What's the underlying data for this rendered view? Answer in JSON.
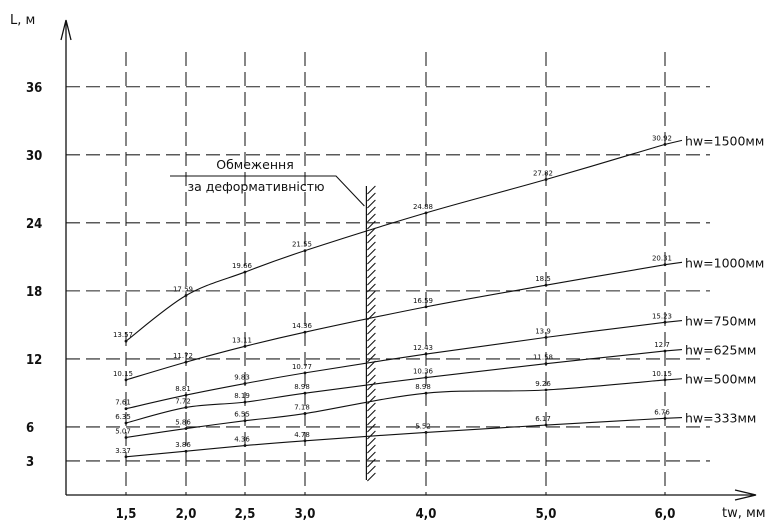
{
  "chart_data": {
    "type": "line",
    "xlabel": "tw, мм",
    "ylabel": "L, м",
    "x_ticks": [
      "1,5",
      "2,0",
      "2,5",
      "3,0",
      "4,0",
      "5,0",
      "6,0"
    ],
    "x_tick_values": [
      1.5,
      2.0,
      2.5,
      3.0,
      4.0,
      5.0,
      6.0
    ],
    "y_ticks": [
      "3",
      "6",
      "12",
      "18",
      "24",
      "30",
      "36"
    ],
    "y_tick_values": [
      3,
      6,
      12,
      18,
      24,
      30,
      36
    ],
    "grid": true,
    "limit_line": {
      "x": 3.5,
      "label_lines": [
        "Обмеження",
        "за деформативністю"
      ]
    },
    "series": [
      {
        "name": "hw=1500мм",
        "x": [
          1.5,
          2.0,
          2.5,
          3.0,
          4.0,
          5.0,
          6.0
        ],
        "values": [
          13.57,
          17.59,
          19.66,
          21.55,
          24.88,
          27.82,
          30.92
        ],
        "labels": [
          "13.57",
          "17.59",
          "19.66",
          "21.55",
          "24.88",
          "27.82",
          "30.92"
        ]
      },
      {
        "name": "hw=1000мм",
        "x": [
          1.5,
          2.0,
          2.5,
          3.0,
          4.0,
          5.0,
          6.0
        ],
        "values": [
          10.15,
          11.72,
          13.11,
          14.36,
          16.59,
          18.5,
          20.31
        ],
        "labels": [
          "10.15",
          "11.72",
          "13.11",
          "14.36",
          "16.59",
          "18.5",
          "20.31"
        ]
      },
      {
        "name": "hw=750мм",
        "x": [
          1.5,
          2.0,
          2.5,
          3.0,
          4.0,
          5.0,
          6.0
        ],
        "values": [
          7.61,
          8.81,
          9.83,
          10.77,
          12.43,
          13.9,
          15.23
        ],
        "labels": [
          "7.61",
          "8.81",
          "9.83",
          "10.77",
          "12.43",
          "13.9",
          "15.23"
        ]
      },
      {
        "name": "hw=625мм",
        "x": [
          1.5,
          2.0,
          2.5,
          3.0,
          4.0,
          5.0,
          6.0
        ],
        "values": [
          6.35,
          7.72,
          8.19,
          8.98,
          10.36,
          11.58,
          12.7
        ],
        "labels": [
          "6.35",
          "7.72",
          "8.19",
          "8.98",
          "10.36",
          "11.58",
          "12.7"
        ]
      },
      {
        "name": "hw=500мм",
        "x": [
          1.5,
          2.0,
          2.5,
          3.0,
          4.0,
          5.0,
          6.0
        ],
        "values": [
          5.07,
          5.86,
          6.55,
          7.18,
          8.98,
          9.26,
          10.15
        ],
        "labels": [
          "5.07",
          "5.86",
          "6.55",
          "7.18",
          "8.98",
          "9.26",
          "10.15"
        ]
      },
      {
        "name": "hw=333мм",
        "x": [
          1.5,
          2.0,
          2.5,
          3.0,
          4.0,
          5.0,
          6.0
        ],
        "values": [
          3.37,
          3.86,
          4.36,
          4.78,
          5.52,
          6.17,
          6.76
        ],
        "labels": [
          "3.37",
          "3.86",
          "4.36",
          "4.78",
          "5.52",
          "6.17",
          "6.76"
        ]
      }
    ]
  }
}
